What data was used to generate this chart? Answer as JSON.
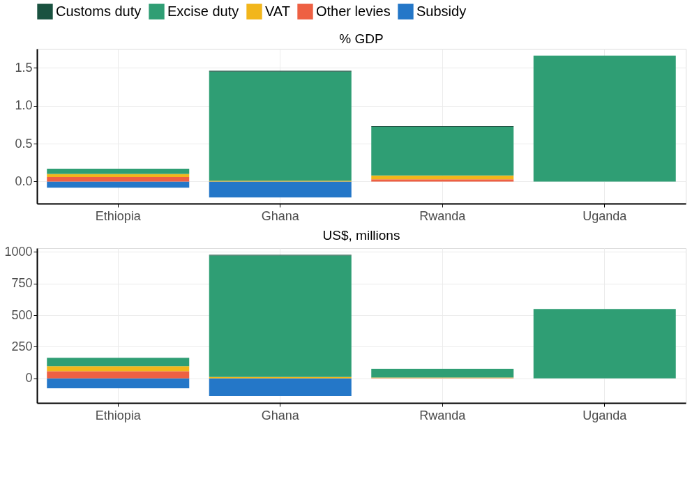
{
  "chart_data": [
    {
      "type": "bar",
      "title": "% GDP",
      "stacked": true,
      "grid": true,
      "legend": "top",
      "categories": [
        "Ethiopia",
        "Ghana",
        "Rwanda",
        "Uganda"
      ],
      "ylim": [
        -0.29,
        1.75
      ],
      "yticks": [
        {
          "value": 0,
          "label": "0.0"
        },
        0.5,
        {
          "value": 1,
          "label": "1.0"
        },
        1.5
      ],
      "series": [
        {
          "name": "Subsidy",
          "color": "#2477c8",
          "values": [
            -0.08,
            -0.21,
            0,
            0
          ]
        },
        {
          "name": "Other levies",
          "color": "#ee6043",
          "values": [
            0.06,
            0,
            0.03,
            0
          ]
        },
        {
          "name": "VAT",
          "color": "#f2b61b",
          "values": [
            0.04,
            0.01,
            0.05,
            0
          ]
        },
        {
          "name": "Excise duty",
          "color": "#2f9e74",
          "values": [
            0.07,
            1.44,
            0.64,
            1.66
          ]
        },
        {
          "name": "Customs duty",
          "color": "#1a5240",
          "values": [
            0,
            0.01,
            0.01,
            0
          ]
        }
      ]
    },
    {
      "type": "bar",
      "title": "US$, millions",
      "stacked": true,
      "grid": true,
      "legend": "top",
      "categories": [
        "Ethiopia",
        "Ghana",
        "Rwanda",
        "Uganda"
      ],
      "ylim": [
        -195,
        1030
      ],
      "yticks": [
        0,
        250,
        500,
        750,
        {
          "value": 1000,
          "label": "1000"
        }
      ],
      "series": [
        {
          "name": "Subsidy",
          "color": "#2477c8",
          "values": [
            -79,
            -140,
            0,
            0
          ]
        },
        {
          "name": "Other levies",
          "color": "#ee6043",
          "values": [
            56,
            0,
            2,
            0
          ]
        },
        {
          "name": "VAT",
          "color": "#f2b61b",
          "values": [
            40,
            10,
            5,
            0
          ]
        },
        {
          "name": "Excise duty",
          "color": "#2f9e74",
          "values": [
            66,
            962,
            69,
            548
          ]
        },
        {
          "name": "Customs duty",
          "color": "#1a5240",
          "values": [
            0,
            5,
            0,
            0
          ]
        }
      ]
    }
  ]
}
